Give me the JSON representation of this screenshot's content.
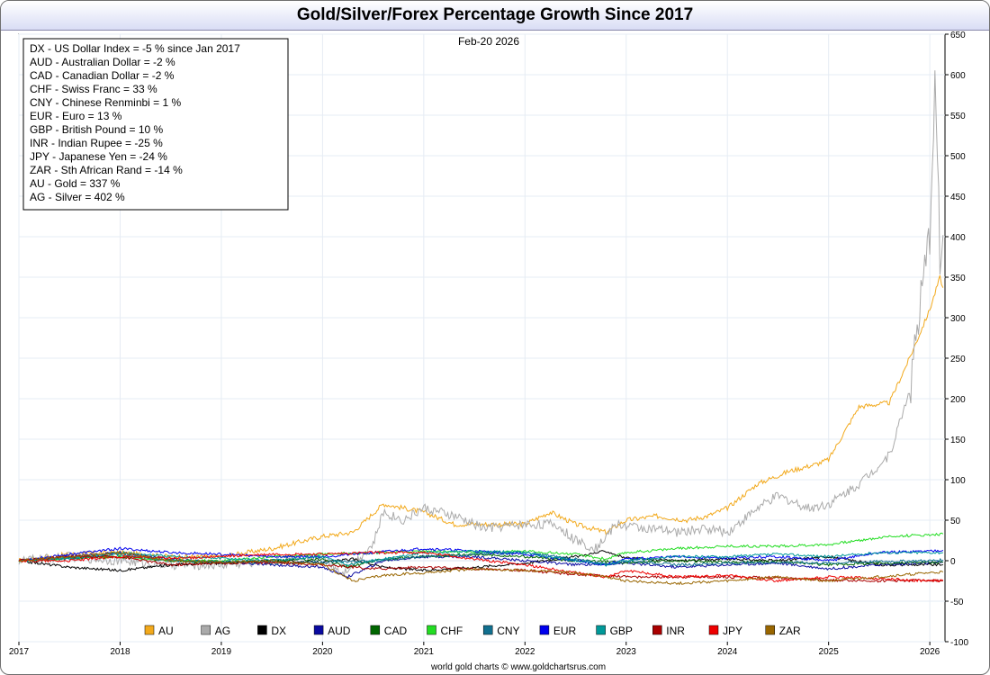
{
  "chart_data": {
    "type": "line",
    "title": "Gold/Silver/Forex Percentage Growth Since 2017",
    "date_label": "Feb-20  2026",
    "credit": "world gold charts © www.goldchartsrus.com",
    "x_ticks": [
      "2017",
      "2018",
      "2019",
      "2020",
      "2021",
      "2022",
      "2023",
      "2024",
      "2025",
      "2026"
    ],
    "y_ticks": [
      650,
      600,
      550,
      500,
      450,
      400,
      350,
      300,
      250,
      200,
      150,
      100,
      50,
      0,
      -50,
      -100
    ],
    "ylim": [
      -100,
      650
    ],
    "xlim": [
      2017.0,
      2026.15
    ],
    "grid": true,
    "info_lines": [
      "DX - US Dollar Index = -5 % since Jan 2017",
      "AUD - Australian Dollar = -2 %",
      "CAD - Canadian Dollar = -2 %",
      "CHF - Swiss Franc = 33 %",
      "CNY - Chinese Renminbi = 1 %",
      "EUR - Euro = 13 %",
      "GBP - British Pound = 10 %",
      "INR - Indian Rupee = -25 %",
      "JPY - Japanese Yen = -24 %",
      "ZAR - Sth African Rand = -14 %",
      "AU - Gold = 337 %",
      "AG - Silver = 402 %"
    ],
    "legend_position": "bottom",
    "series": [
      {
        "name": "AU",
        "color": "#f2a91c",
        "x": [
          2017.0,
          2017.5,
          2018.0,
          2018.5,
          2019.0,
          2019.5,
          2020.0,
          2020.3,
          2020.6,
          2020.8,
          2021.0,
          2021.3,
          2021.6,
          2022.0,
          2022.25,
          2022.5,
          2022.8,
          2023.0,
          2023.3,
          2023.6,
          2023.8,
          2024.0,
          2024.3,
          2024.6,
          2024.9,
          2025.0,
          2025.3,
          2025.6,
          2025.8,
          2026.0,
          2026.1,
          2026.13
        ],
        "y": [
          0,
          8,
          10,
          5,
          5,
          15,
          30,
          35,
          70,
          65,
          60,
          45,
          45,
          45,
          60,
          45,
          35,
          50,
          55,
          50,
          55,
          65,
          95,
          110,
          120,
          125,
          190,
          195,
          250,
          310,
          350,
          337
        ]
      },
      {
        "name": "AG",
        "color": "#aaaaaa",
        "x": [
          2017.0,
          2017.5,
          2018.0,
          2018.5,
          2019.0,
          2019.5,
          2020.0,
          2020.2,
          2020.5,
          2020.6,
          2020.8,
          2021.0,
          2021.3,
          2021.6,
          2022.0,
          2022.3,
          2022.5,
          2022.7,
          2022.9,
          2023.2,
          2023.5,
          2023.8,
          2024.0,
          2024.3,
          2024.5,
          2024.8,
          2025.0,
          2025.3,
          2025.6,
          2025.8,
          2026.0,
          2026.05,
          2026.1,
          2026.13
        ],
        "y": [
          0,
          5,
          0,
          -5,
          -5,
          0,
          5,
          -15,
          20,
          60,
          50,
          65,
          55,
          40,
          45,
          45,
          25,
          15,
          45,
          40,
          35,
          40,
          35,
          65,
          80,
          65,
          70,
          95,
          130,
          210,
          400,
          600,
          380,
          402
        ]
      },
      {
        "name": "DX",
        "color": "#000000",
        "x": [
          2017.0,
          2017.5,
          2018.0,
          2018.5,
          2019.0,
          2019.5,
          2020.0,
          2020.3,
          2020.6,
          2021.0,
          2021.5,
          2022.0,
          2022.5,
          2022.8,
          2023.0,
          2023.5,
          2024.0,
          2024.5,
          2025.0,
          2025.5,
          2026.0,
          2026.13
        ],
        "y": [
          0,
          -8,
          -12,
          -5,
          -3,
          0,
          -2,
          2,
          -8,
          -12,
          -8,
          -3,
          5,
          12,
          3,
          0,
          2,
          0,
          5,
          -5,
          -5,
          -5
        ]
      },
      {
        "name": "AUD",
        "color": "#0a0aa0",
        "x": [
          2017.0,
          2017.5,
          2018.0,
          2018.5,
          2019.0,
          2019.5,
          2020.0,
          2020.25,
          2020.6,
          2021.0,
          2021.5,
          2022.0,
          2022.5,
          2023.0,
          2023.5,
          2024.0,
          2024.5,
          2025.0,
          2025.5,
          2026.0,
          2026.13
        ],
        "y": [
          0,
          5,
          10,
          2,
          -2,
          -5,
          -8,
          -20,
          0,
          5,
          5,
          0,
          -5,
          -3,
          -8,
          -5,
          -3,
          -10,
          -5,
          -3,
          -2
        ]
      },
      {
        "name": "CAD",
        "color": "#006600",
        "x": [
          2017.0,
          2017.5,
          2018.0,
          2018.5,
          2019.0,
          2019.5,
          2020.0,
          2020.25,
          2020.6,
          2021.0,
          2021.5,
          2022.0,
          2022.5,
          2023.0,
          2023.5,
          2024.0,
          2024.5,
          2025.0,
          2025.5,
          2026.0,
          2026.13
        ],
        "y": [
          0,
          3,
          5,
          0,
          -2,
          0,
          2,
          -8,
          2,
          5,
          8,
          5,
          0,
          -2,
          0,
          -2,
          -1,
          -5,
          -3,
          -2,
          -2
        ]
      },
      {
        "name": "CHF",
        "color": "#22dd22",
        "x": [
          2017.0,
          2017.5,
          2018.0,
          2018.5,
          2019.0,
          2019.5,
          2020.0,
          2020.5,
          2021.0,
          2021.5,
          2022.0,
          2022.5,
          2022.8,
          2023.0,
          2023.5,
          2024.0,
          2024.5,
          2025.0,
          2025.3,
          2025.6,
          2026.0,
          2026.13
        ],
        "y": [
          0,
          3,
          5,
          0,
          0,
          5,
          8,
          10,
          12,
          10,
          12,
          8,
          2,
          10,
          15,
          18,
          18,
          20,
          25,
          30,
          32,
          33
        ]
      },
      {
        "name": "CNY",
        "color": "#11708f",
        "x": [
          2017.0,
          2017.5,
          2018.0,
          2018.5,
          2019.0,
          2019.5,
          2020.0,
          2020.5,
          2021.0,
          2021.5,
          2022.0,
          2022.5,
          2022.8,
          2023.0,
          2023.5,
          2024.0,
          2024.5,
          2025.0,
          2025.5,
          2026.0,
          2026.13
        ],
        "y": [
          0,
          3,
          8,
          0,
          -1,
          -3,
          -2,
          0,
          5,
          8,
          10,
          2,
          -5,
          0,
          -5,
          -3,
          -2,
          -3,
          -1,
          0,
          1
        ]
      },
      {
        "name": "EUR",
        "color": "#0000ee",
        "x": [
          2017.0,
          2017.5,
          2018.0,
          2018.5,
          2019.0,
          2019.5,
          2020.0,
          2020.5,
          2021.0,
          2021.5,
          2022.0,
          2022.5,
          2022.8,
          2023.0,
          2023.5,
          2024.0,
          2024.5,
          2025.0,
          2025.5,
          2026.0,
          2026.13
        ],
        "y": [
          0,
          8,
          15,
          10,
          8,
          5,
          5,
          10,
          15,
          12,
          8,
          0,
          -5,
          2,
          5,
          3,
          5,
          0,
          10,
          12,
          13
        ]
      },
      {
        "name": "GBP",
        "color": "#009999",
        "x": [
          2017.0,
          2017.5,
          2018.0,
          2018.5,
          2019.0,
          2019.5,
          2020.0,
          2020.25,
          2020.6,
          2021.0,
          2021.5,
          2022.0,
          2022.5,
          2022.8,
          2023.0,
          2023.5,
          2024.0,
          2024.5,
          2025.0,
          2025.5,
          2026.0,
          2026.13
        ],
        "y": [
          0,
          3,
          10,
          5,
          3,
          0,
          5,
          -5,
          2,
          10,
          12,
          10,
          0,
          -5,
          0,
          5,
          5,
          8,
          5,
          10,
          10,
          10
        ]
      },
      {
        "name": "INR",
        "color": "#aa0000",
        "x": [
          2017.0,
          2017.5,
          2018.0,
          2018.5,
          2019.0,
          2019.5,
          2020.0,
          2020.5,
          2021.0,
          2021.5,
          2022.0,
          2022.5,
          2023.0,
          2023.5,
          2024.0,
          2024.5,
          2025.0,
          2025.5,
          2026.0,
          2026.13
        ],
        "y": [
          0,
          5,
          5,
          -5,
          -3,
          -2,
          -5,
          -10,
          -8,
          -10,
          -12,
          -17,
          -20,
          -20,
          -20,
          -21,
          -24,
          -25,
          -24,
          -25
        ]
      },
      {
        "name": "JPY",
        "color": "#ee0000",
        "x": [
          2017.0,
          2017.5,
          2018.0,
          2018.5,
          2019.0,
          2019.5,
          2020.0,
          2020.5,
          2021.0,
          2021.5,
          2022.0,
          2022.5,
          2022.8,
          2023.0,
          2023.5,
          2024.0,
          2024.5,
          2025.0,
          2025.5,
          2026.0,
          2026.13
        ],
        "y": [
          0,
          0,
          5,
          3,
          5,
          8,
          8,
          10,
          10,
          2,
          -5,
          -15,
          -20,
          -12,
          -20,
          -18,
          -25,
          -20,
          -22,
          -25,
          -24
        ]
      },
      {
        "name": "ZAR",
        "color": "#996600",
        "x": [
          2017.0,
          2017.5,
          2018.0,
          2018.5,
          2019.0,
          2019.5,
          2020.0,
          2020.3,
          2020.6,
          2021.0,
          2021.5,
          2022.0,
          2022.5,
          2022.8,
          2023.0,
          2023.5,
          2024.0,
          2024.5,
          2025.0,
          2025.5,
          2026.0,
          2026.13
        ],
        "y": [
          0,
          5,
          10,
          0,
          -2,
          0,
          -5,
          -25,
          -18,
          -15,
          -10,
          -12,
          -15,
          -20,
          -25,
          -28,
          -25,
          -20,
          -25,
          -20,
          -15,
          -14
        ]
      }
    ]
  }
}
